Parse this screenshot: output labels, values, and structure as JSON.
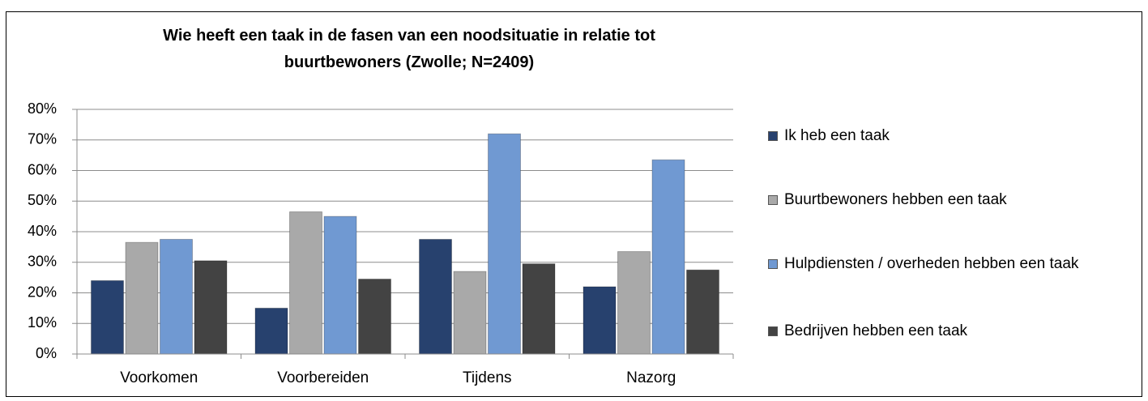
{
  "chart_data": {
    "type": "bar",
    "title": "Wie heeft een taak in de fasen van een noodsituatie in relatie tot buurtbewoners  (Zwolle; N=2409)",
    "categories": [
      "Voorkomen",
      "Voorbereiden",
      "Tijdens",
      "Nazorg"
    ],
    "series": [
      {
        "name": "Ik heb een taak",
        "color": "#27416e",
        "values": [
          24,
          15,
          37.5,
          22
        ]
      },
      {
        "name": "Buurtbewoners hebben een taak",
        "color": "#a9a9a9",
        "values": [
          36.5,
          46.5,
          27,
          33.5
        ]
      },
      {
        "name": "Hulpdiensten / overheden hebben een taak",
        "color": "#7099d2",
        "values": [
          37.5,
          45,
          72,
          63.5
        ]
      },
      {
        "name": "Bedrijven hebben een taak",
        "color": "#434343",
        "values": [
          30.5,
          24.5,
          29.5,
          27.5
        ]
      }
    ],
    "ylim": [
      0,
      80
    ],
    "yticks": [
      {
        "value": 0,
        "label": "0%"
      },
      {
        "value": 10,
        "label": "10%"
      },
      {
        "value": 20,
        "label": "20%"
      },
      {
        "value": 30,
        "label": "30%"
      },
      {
        "value": 40,
        "label": "40%"
      },
      {
        "value": 50,
        "label": "50%"
      },
      {
        "value": 60,
        "label": "60%"
      },
      {
        "value": 70,
        "label": "70%"
      },
      {
        "value": 80,
        "label": "80%"
      }
    ],
    "grid": true,
    "legend": "right"
  }
}
